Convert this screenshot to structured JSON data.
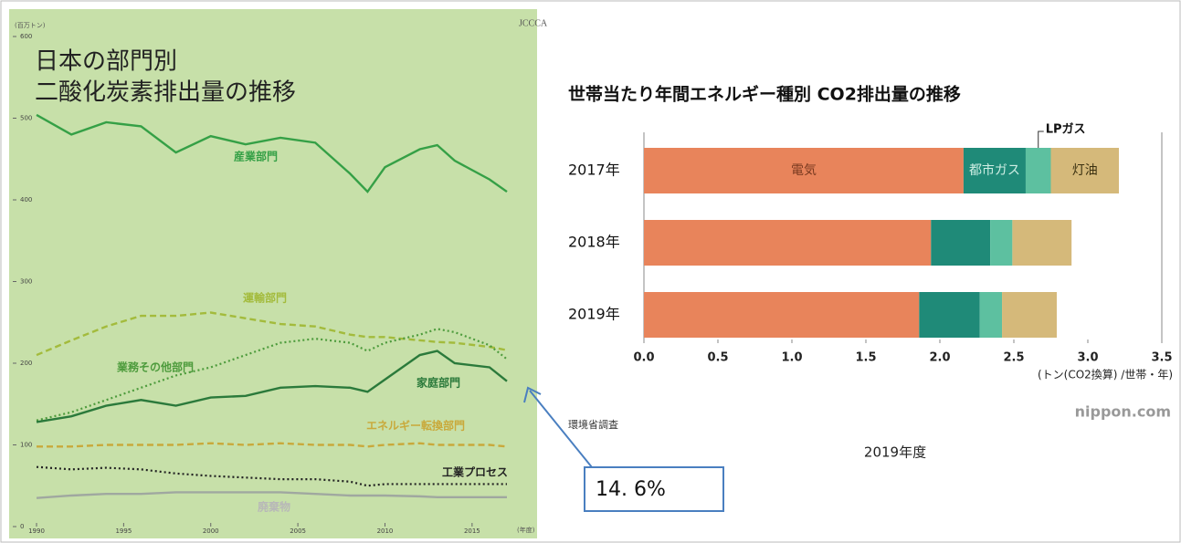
{
  "chart_data": [
    {
      "type": "line",
      "title": [
        "日本の部門別",
        "二酸化炭素排出量の推移"
      ],
      "y_unit": "(百万トン)",
      "x_unit": "(年度)",
      "logo": "JCCCA",
      "x": [
        1990,
        1992,
        1994,
        1996,
        1998,
        2000,
        2002,
        2004,
        2006,
        2008,
        2009,
        2010,
        2012,
        2013,
        2014,
        2016,
        2017
      ],
      "xlim": [
        1990,
        2017
      ],
      "xticks": [
        1990,
        1995,
        2000,
        2005,
        2010,
        2015
      ],
      "ylim": [
        0,
        600
      ],
      "yticks": [
        0,
        100,
        200,
        300,
        400,
        500,
        600
      ],
      "series": [
        {
          "name": "産業部門",
          "color": "#35a046",
          "style": "solid",
          "values": [
            504,
            480,
            495,
            490,
            458,
            478,
            468,
            476,
            470,
            432,
            410,
            440,
            462,
            467,
            448,
            425,
            410
          ]
        },
        {
          "name": "運輸部門",
          "color": "#a3bb3c",
          "style": "dashed",
          "values": [
            210,
            228,
            245,
            258,
            258,
            262,
            255,
            248,
            245,
            235,
            232,
            232,
            228,
            226,
            225,
            220,
            216
          ]
        },
        {
          "name": "業務その他部門",
          "color": "#4d9b3c",
          "style": "dotted",
          "values": [
            130,
            140,
            155,
            170,
            185,
            195,
            210,
            225,
            230,
            225,
            215,
            225,
            235,
            242,
            238,
            222,
            205
          ]
        },
        {
          "name": "家庭部門",
          "color": "#2b7a3b",
          "style": "solid",
          "values": [
            128,
            135,
            148,
            155,
            148,
            158,
            160,
            170,
            172,
            170,
            165,
            180,
            210,
            215,
            200,
            195,
            178
          ]
        },
        {
          "name": "エネルギー転換部門",
          "color": "#c9a93b",
          "style": "dashed",
          "values": [
            98,
            98,
            100,
            100,
            100,
            102,
            100,
            102,
            100,
            100,
            98,
            100,
            102,
            100,
            100,
            100,
            98
          ]
        },
        {
          "name": "工業プロセス",
          "color": "#222222",
          "style": "dotted",
          "values": [
            73,
            70,
            72,
            70,
            65,
            62,
            60,
            58,
            58,
            55,
            50,
            52,
            52,
            52,
            52,
            52,
            52
          ]
        },
        {
          "name": "廃棄物",
          "color": "#a0a8a0",
          "style": "solid",
          "values": [
            35,
            38,
            40,
            40,
            42,
            42,
            42,
            42,
            40,
            38,
            38,
            38,
            37,
            36,
            36,
            36,
            36
          ]
        }
      ]
    },
    {
      "type": "stacked-bar-horizontal",
      "title": "世帯当たり年間エネルギー種別 CO2排出量の推移",
      "x_label": "(トン(CO2換算) /世帯・年)",
      "categories": [
        "2017年",
        "2018年",
        "2019年"
      ],
      "xlim": [
        0,
        3.5
      ],
      "xticks": [
        {
          "value": 0,
          "label": "0.0"
        },
        0.5,
        {
          "value": 1,
          "label": "1.0"
        },
        1.5,
        {
          "value": 2,
          "label": "2.0"
        },
        2.5,
        {
          "value": 3,
          "label": "3.0"
        },
        3.5
      ],
      "series": [
        {
          "name": "電気",
          "color": "#e8845b",
          "values": [
            2.16,
            1.94,
            1.86
          ]
        },
        {
          "name": "都市ガス",
          "color": "#1f8a78",
          "values": [
            0.42,
            0.4,
            0.41
          ]
        },
        {
          "name": "LPガス",
          "color": "#5dc0a0",
          "values": [
            0.17,
            0.15,
            0.15
          ]
        },
        {
          "name": "灯油",
          "color": "#d5b97a",
          "values": [
            0.46,
            0.4,
            0.37
          ]
        }
      ]
    }
  ],
  "annotations": {
    "callout": "14. 6%",
    "fiscal_year": "2019年度",
    "source": "環境省調査",
    "credit": "nippon.com"
  }
}
